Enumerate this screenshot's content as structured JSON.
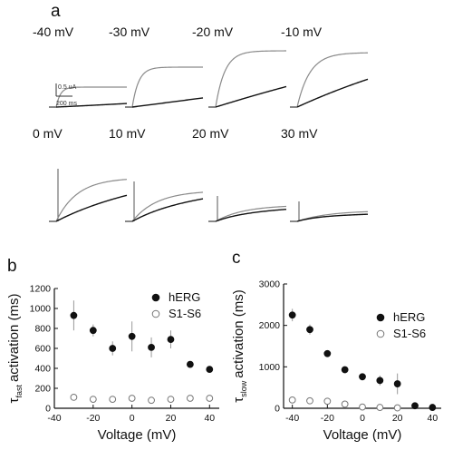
{
  "panel_a": {
    "letter": "a",
    "traces": [
      "-40 mV",
      "-30 mV",
      "-20 mV",
      "-10 mV",
      "0 mV",
      "10 mV",
      "20 mV",
      "30 mV"
    ],
    "scale_current": "0.5 uA",
    "scale_time": "200 ms"
  },
  "chart_data": [
    {
      "type": "scatter",
      "panel": "b",
      "xlabel": "Voltage (mV)",
      "ylabel_prefix": "τ",
      "ylabel_sub": "fast",
      "ylabel_main": "activation (ms)",
      "xlim": [
        -40,
        45
      ],
      "ylim": [
        0,
        1200
      ],
      "xticks": [
        -40,
        -20,
        0,
        20,
        40
      ],
      "xtick_labels": [
        "-40",
        "-20",
        "0",
        "20",
        "40"
      ],
      "yticks": [
        0,
        200,
        400,
        600,
        800,
        1000,
        1200
      ],
      "ytick_labels": [
        "0",
        "200",
        "400",
        "600",
        "800",
        "1000",
        "1200"
      ],
      "legend_position": "top-right",
      "series": [
        {
          "name": "hERG",
          "marker": "filled-circle",
          "x": [
            -30,
            -20,
            -10,
            0,
            10,
            20,
            30,
            40
          ],
          "y": [
            930,
            780,
            600,
            720,
            610,
            690,
            440,
            390
          ],
          "err": [
            150,
            60,
            70,
            150,
            100,
            90,
            30,
            30
          ]
        },
        {
          "name": "S1-S6",
          "marker": "open-circle",
          "x": [
            -30,
            -20,
            -10,
            0,
            10,
            20,
            30,
            40
          ],
          "y": [
            110,
            90,
            90,
            100,
            80,
            90,
            100,
            100
          ],
          "err": [
            20,
            10,
            10,
            10,
            10,
            10,
            10,
            10
          ]
        }
      ]
    },
    {
      "type": "scatter",
      "panel": "c",
      "xlabel": "Voltage (mV)",
      "ylabel_prefix": "τ",
      "ylabel_sub": "slow",
      "ylabel_main": "activation (ms)",
      "xlim": [
        -45,
        45
      ],
      "ylim": [
        0,
        3000
      ],
      "xticks": [
        -40,
        -20,
        0,
        20,
        40
      ],
      "xtick_labels": [
        "-40",
        "-20",
        "0",
        "20",
        "40"
      ],
      "yticks": [
        0,
        1000,
        2000,
        3000
      ],
      "ytick_labels": [
        "0",
        "1000",
        "2000",
        "3000"
      ],
      "legend_position": "top-right",
      "series": [
        {
          "name": "hERG",
          "marker": "filled-circle",
          "x": [
            -40,
            -30,
            -20,
            -10,
            0,
            10,
            20,
            30,
            40
          ],
          "y": [
            2250,
            1900,
            1320,
            930,
            760,
            670,
            590,
            60,
            20
          ],
          "err": [
            150,
            120,
            80,
            60,
            60,
            120,
            250,
            30,
            10
          ]
        },
        {
          "name": "S1-S6",
          "marker": "open-circle",
          "x": [
            -40,
            -30,
            -20,
            -10,
            0,
            10,
            20
          ],
          "y": [
            200,
            180,
            170,
            100,
            30,
            20,
            10
          ],
          "err": [
            20,
            20,
            20,
            20,
            10,
            10,
            10
          ]
        }
      ]
    }
  ]
}
